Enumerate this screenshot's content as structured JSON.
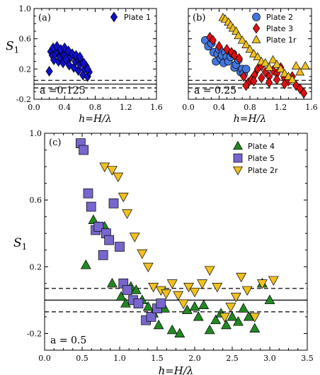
{
  "chart_data": [
    {
      "type": "scatter",
      "panel_label": "(a)",
      "annotation": "a =0.125",
      "xlabel": "h=H/λ",
      "ylabel": "S1",
      "xlim": [
        0.0,
        1.6
      ],
      "ylim": [
        -0.2,
        1.0
      ],
      "xticks": [
        "0.0",
        "0.4",
        "0.8",
        "1.2",
        "1.6"
      ],
      "yticks": [
        "-0.2",
        "0.2",
        "0.6",
        "1.0"
      ],
      "hlines": {
        "solid": 0.0,
        "dashed": [
          0.05,
          -0.05
        ]
      },
      "legend_position": "top-right",
      "series": [
        {
          "name": "Plate 1",
          "marker": "diamond",
          "color": "#1010cc",
          "x": [
            0.2,
            0.22,
            0.24,
            0.26,
            0.28,
            0.3,
            0.32,
            0.34,
            0.36,
            0.38,
            0.4,
            0.42,
            0.44,
            0.46,
            0.48,
            0.5,
            0.52,
            0.54,
            0.56,
            0.58,
            0.6,
            0.62,
            0.64,
            0.66,
            0.68,
            0.7,
            0.72,
            0.25,
            0.3,
            0.35,
            0.4,
            0.45,
            0.5,
            0.55,
            0.6,
            0.65,
            0.7
          ],
          "y": [
            0.17,
            0.43,
            0.38,
            0.32,
            0.4,
            0.44,
            0.3,
            0.36,
            0.42,
            0.28,
            0.38,
            0.33,
            0.42,
            0.25,
            0.36,
            0.4,
            0.22,
            0.3,
            0.34,
            0.18,
            0.26,
            0.3,
            0.12,
            0.2,
            0.24,
            0.1,
            0.16,
            0.48,
            0.5,
            0.46,
            0.48,
            0.44,
            0.4,
            0.38,
            0.36,
            0.28,
            0.2
          ]
        }
      ]
    },
    {
      "type": "scatter",
      "panel_label": "(b)",
      "annotation": "a = 0.25",
      "xlabel": "h=H/λ",
      "ylabel": "",
      "xlim": [
        0.0,
        1.6
      ],
      "ylim": [
        -0.2,
        1.0
      ],
      "xticks": [
        "0.0",
        "0.4",
        "0.8",
        "1.2",
        "1.6"
      ],
      "yticks": [],
      "hlines": {
        "solid": 0.0,
        "dashed": [
          0.05,
          -0.05
        ]
      },
      "legend_position": "top-right",
      "series": [
        {
          "name": "Plate 2",
          "marker": "circle",
          "color": "#4477dd",
          "x": [
            0.22,
            0.26,
            0.3,
            0.33,
            0.36,
            0.38,
            0.4,
            0.42,
            0.44,
            0.46,
            0.48,
            0.5,
            0.52,
            0.55,
            0.58,
            0.6,
            0.62,
            0.65,
            0.68,
            0.7,
            0.72,
            0.75
          ],
          "y": [
            0.58,
            0.5,
            0.54,
            0.42,
            0.3,
            0.4,
            0.46,
            0.34,
            0.38,
            0.28,
            0.42,
            0.36,
            0.3,
            0.36,
            0.4,
            0.22,
            0.26,
            0.32,
            0.16,
            0.2,
            0.14,
            0.2
          ]
        },
        {
          "name": "Plate 3",
          "marker": "diamond",
          "color": "#dd1111",
          "x": [
            0.28,
            0.32,
            0.4,
            0.5,
            0.56,
            0.6,
            0.66,
            0.72,
            0.78,
            0.82,
            0.86,
            0.9,
            0.95,
            1.0,
            1.05,
            1.1,
            1.15,
            1.2,
            1.25,
            1.3,
            1.35,
            1.4,
            1.45,
            1.5,
            0.75,
            0.85,
            0.95,
            1.05,
            1.15,
            1.25
          ],
          "y": [
            0.62,
            0.58,
            0.5,
            0.46,
            0.42,
            0.38,
            0.34,
            0.1,
            0.02,
            0.06,
            0.12,
            0.2,
            0.24,
            0.16,
            0.1,
            0.18,
            0.14,
            0.22,
            0.08,
            0.04,
            0.1,
            -0.02,
            -0.06,
            -0.12,
            -0.02,
            0.04,
            0.08,
            0.02,
            0.06,
            0.0
          ]
        },
        {
          "name": "Plate 1r",
          "marker": "triangle",
          "color": "#f0c020",
          "x": [
            0.45,
            0.48,
            0.52,
            0.55,
            0.58,
            0.62,
            0.65,
            0.7,
            0.75,
            0.8,
            0.85,
            0.9,
            0.95,
            1.0,
            1.05,
            1.1,
            1.15,
            1.2,
            1.25,
            1.3,
            1.35,
            1.4,
            1.45,
            1.52
          ],
          "y": [
            0.88,
            0.86,
            0.82,
            0.78,
            0.74,
            0.7,
            0.64,
            0.58,
            0.52,
            0.46,
            0.4,
            0.36,
            0.3,
            0.28,
            0.22,
            0.32,
            0.26,
            0.2,
            0.14,
            0.1,
            0.06,
            0.24,
            0.16,
            0.24
          ]
        }
      ]
    },
    {
      "type": "scatter",
      "panel_label": "(c)",
      "annotation": "a = 0.5",
      "xlabel": "h=H/λ",
      "ylabel": "S1",
      "xlim": [
        0.0,
        3.5
      ],
      "ylim": [
        -0.3,
        1.0
      ],
      "xticks": [
        "0.0",
        "0.5",
        "1.0",
        "1.5",
        "2.0",
        "2.5",
        "3.0",
        "3.5"
      ],
      "yticks": [
        "-0.2",
        "0.2",
        "0.6",
        "1.0"
      ],
      "hlines": {
        "solid": 0.0,
        "dashed": [
          0.07,
          -0.07
        ]
      },
      "legend_position": "top-right",
      "series": [
        {
          "name": "Plate 4",
          "marker": "triangle",
          "color": "#228822",
          "x": [
            0.55,
            0.65,
            0.72,
            0.8,
            0.9,
            1.02,
            1.08,
            1.15,
            1.22,
            1.3,
            1.38,
            1.45,
            1.52,
            1.6,
            1.7,
            1.8,
            1.9,
            2.0,
            2.05,
            2.12,
            2.2,
            2.28,
            2.35,
            2.42,
            2.5,
            2.58,
            2.65,
            2.72,
            2.8,
            2.9,
            3.0
          ],
          "y": [
            0.21,
            0.48,
            0.44,
            0.44,
            0.1,
            0.02,
            -0.02,
            0.08,
            0.06,
            0.0,
            -0.04,
            -0.08,
            -0.15,
            -0.05,
            -0.18,
            -0.2,
            -0.06,
            -0.04,
            -0.1,
            -0.03,
            -0.18,
            -0.12,
            -0.08,
            -0.15,
            -0.1,
            -0.13,
            -0.05,
            -0.1,
            -0.17,
            0.1,
            0.0
          ]
        },
        {
          "name": "Plate 5",
          "marker": "square",
          "color": "#7766cc",
          "x": [
            0.48,
            0.52,
            0.58,
            0.62,
            0.68,
            0.72,
            0.78,
            0.82,
            0.86,
            0.92,
            1.0,
            1.05,
            1.1,
            1.18,
            1.25,
            1.35,
            1.42,
            1.5,
            1.55
          ],
          "y": [
            0.94,
            0.9,
            0.64,
            0.56,
            0.42,
            0.44,
            0.27,
            0.4,
            0.36,
            0.58,
            0.32,
            0.1,
            0.06,
            0.0,
            -0.02,
            -0.12,
            -0.1,
            -0.05,
            -0.02
          ]
        },
        {
          "name": "Plate 2r",
          "marker": "triangle-down",
          "color": "#f0c020",
          "x": [
            0.8,
            0.9,
            0.98,
            1.05,
            1.1,
            1.2,
            1.3,
            1.38,
            1.45,
            1.55,
            1.62,
            1.7,
            1.78,
            1.85,
            1.92,
            2.0,
            2.1,
            2.2,
            2.3,
            2.4,
            2.48,
            2.55,
            2.62,
            2.7,
            2.8,
            2.9,
            3.05
          ],
          "y": [
            0.8,
            0.78,
            0.74,
            0.62,
            0.52,
            0.38,
            0.28,
            0.2,
            0.08,
            0.06,
            0.04,
            0.1,
            0.03,
            -0.02,
            0.08,
            0.05,
            0.1,
            0.18,
            0.08,
            -0.1,
            -0.04,
            0.02,
            0.14,
            0.06,
            -0.1,
            0.1,
            0.12
          ]
        }
      ]
    }
  ]
}
